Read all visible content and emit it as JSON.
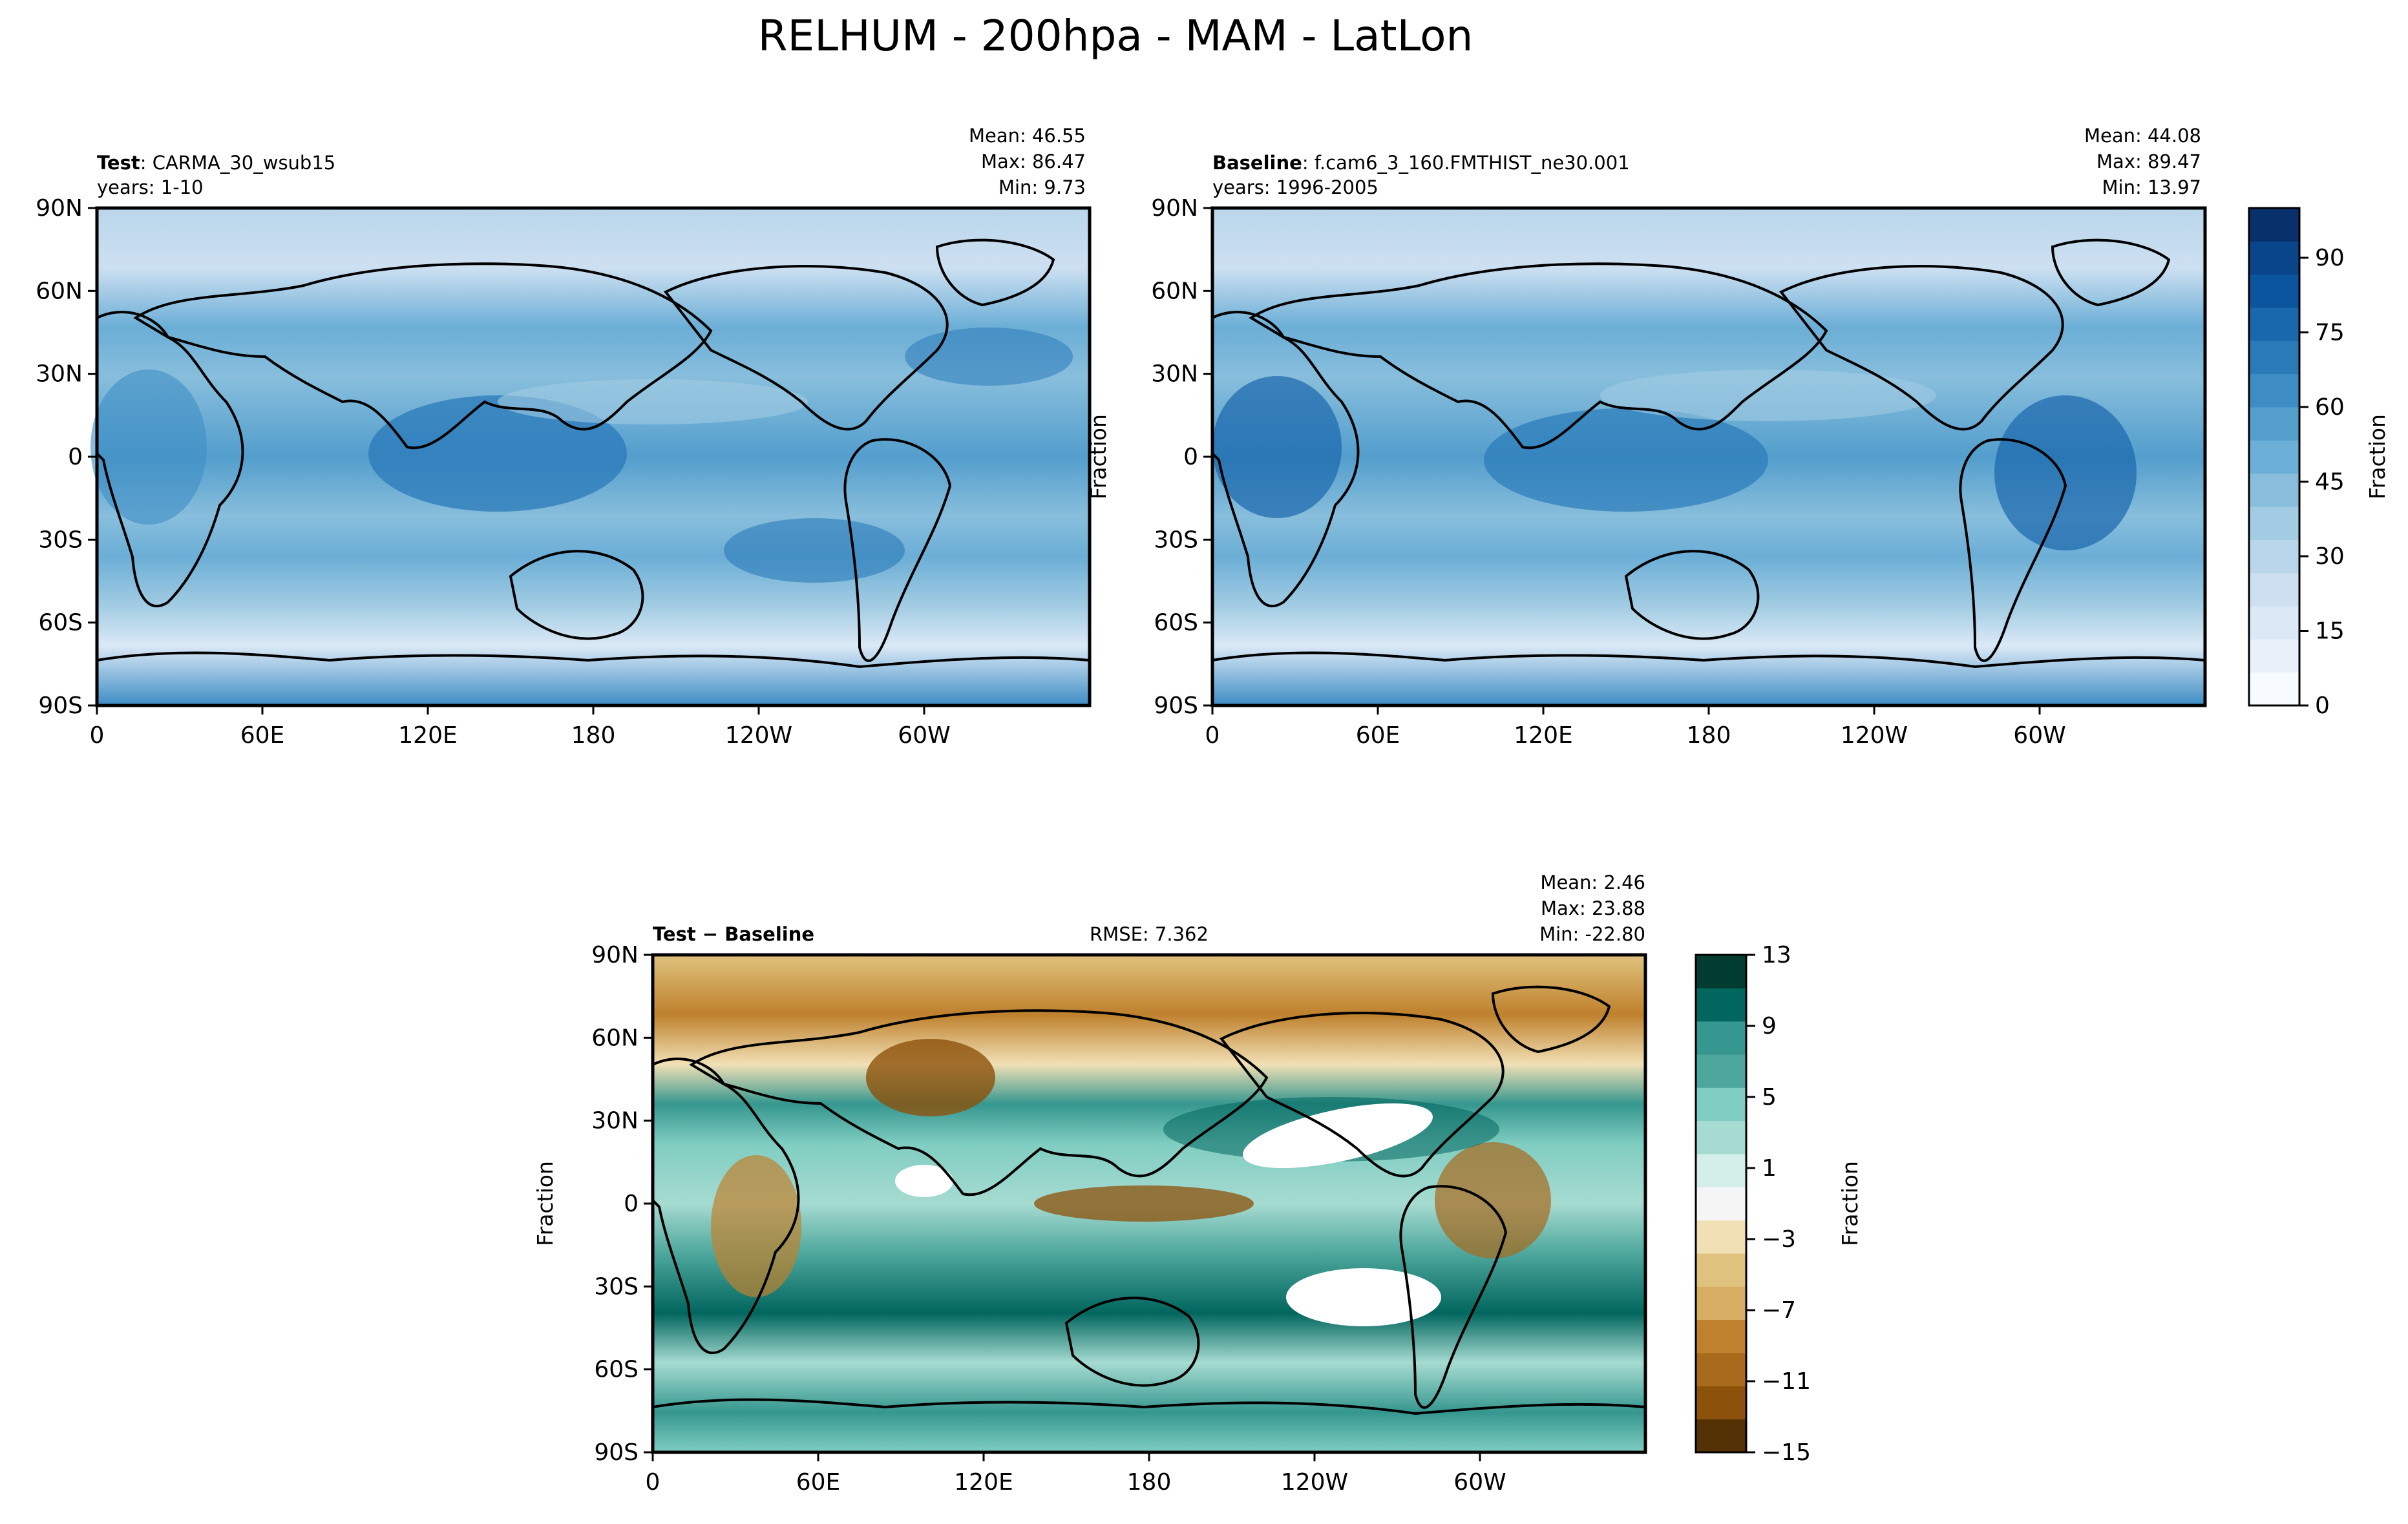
{
  "title": "RELHUM - 200hpa - MAM - LatLon",
  "lon_ticks": [
    "0",
    "60E",
    "120E",
    "180",
    "120W",
    "60W"
  ],
  "lat_ticks": [
    "90N",
    "60N",
    "30N",
    "0",
    "30S",
    "60S",
    "90S"
  ],
  "panels": {
    "test": {
      "label_bold": "Test",
      "label_rest": ": CARMA_30_wsub15",
      "years": "years: 1-10",
      "stats": [
        "Mean: 46.55",
        "Max: 86.47",
        "Min:  9.73"
      ]
    },
    "baseline": {
      "label_bold": "Baseline",
      "label_rest": ": f.cam6_3_160.FMTHIST_ne30.001",
      "years": "years: 1996-2005",
      "ylabel": "Fraction",
      "stats": [
        "Mean: 44.08",
        "Max: 89.47",
        "Min: 13.97"
      ]
    },
    "diff": {
      "label_bold": "Test − Baseline",
      "rmse": "RMSE: 7.362",
      "ylabel": "Fraction",
      "stats": [
        "Mean:  2.46",
        "Max: 23.88",
        "Min: -22.80"
      ]
    }
  },
  "colorbars": {
    "relhum": {
      "label": "Fraction",
      "ticks": [
        "0",
        "15",
        "30",
        "45",
        "60",
        "75",
        "90"
      ],
      "tick_values": [
        0,
        15,
        30,
        45,
        60,
        75,
        90
      ],
      "range": [
        0,
        100
      ],
      "colors": [
        "#f7fbff",
        "#e8f1fa",
        "#dbe9f6",
        "#cde0f1",
        "#bad6eb",
        "#a2cce3",
        "#88bedc",
        "#6baed6",
        "#539ecd",
        "#3d8dc4",
        "#2a7ab9",
        "#1967ad",
        "#0b559f",
        "#08458a",
        "#08306b"
      ]
    },
    "diff": {
      "label": "Fraction",
      "ticks": [
        "13",
        "9",
        "5",
        "1",
        "−3",
        "−7",
        "−11",
        "−15"
      ],
      "tick_values": [
        13,
        9,
        5,
        1,
        -3,
        -7,
        -11,
        -15
      ],
      "range": [
        -15,
        13
      ],
      "colors": [
        "#543005",
        "#8c510a",
        "#a86a1d",
        "#bf812d",
        "#d7ad63",
        "#dfc27d",
        "#f1e0b5",
        "#f5f5f5",
        "#d4eee9",
        "#a6dbd1",
        "#80cdc1",
        "#4ea79c",
        "#35978f",
        "#01665e",
        "#003c30"
      ]
    }
  },
  "chart_data": [
    {
      "type": "heatmap",
      "name": "Test",
      "xlabel": "",
      "ylabel": "",
      "xlim": [
        0,
        360
      ],
      "ylim": [
        -90,
        90
      ],
      "value_range": [
        9.73,
        86.47
      ]
    },
    {
      "type": "heatmap",
      "name": "Baseline",
      "xlabel": "",
      "ylabel": "Fraction",
      "xlim": [
        0,
        360
      ],
      "ylim": [
        -90,
        90
      ],
      "value_range": [
        13.97,
        89.47
      ]
    },
    {
      "type": "heatmap",
      "name": "Test − Baseline",
      "xlabel": "",
      "ylabel": "Fraction",
      "xlim": [
        0,
        360
      ],
      "ylim": [
        -90,
        90
      ],
      "value_range": [
        -22.8,
        23.88
      ]
    }
  ]
}
